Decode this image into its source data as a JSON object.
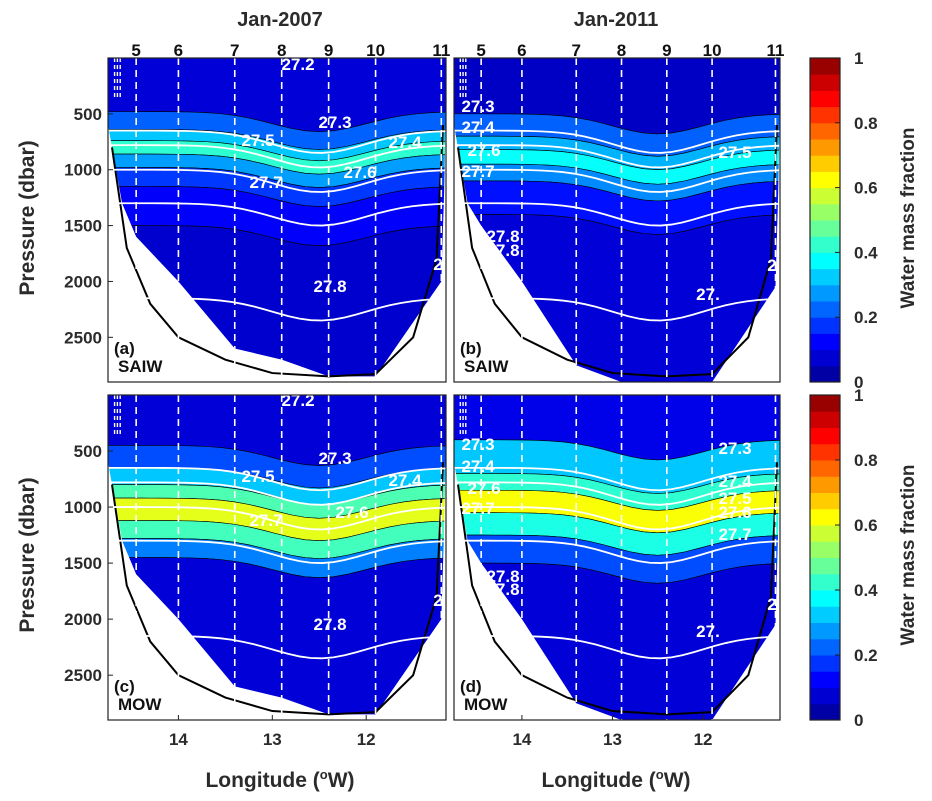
{
  "figure": {
    "column_titles": [
      "Jan-2007",
      "Jan-2011"
    ],
    "xlabel": "Longitude (°W)",
    "ylabel": "Pressure (dbar)",
    "colorbar_label": "Water mass fraction"
  },
  "chart_data": [
    {
      "type": "heatmap",
      "panel": "(a)",
      "water_mass": "SAIW",
      "section": "Jan-2007",
      "xlabel": "Longitude (°W)",
      "ylabel": "Pressure (dbar)",
      "xlim": [
        14.75,
        11.15
      ],
      "ylim": [
        2900,
        0
      ],
      "x_ticks": [
        14,
        13,
        12
      ],
      "y_ticks": [
        500,
        1000,
        1500,
        2000,
        2500
      ],
      "stations": [
        {
          "label": "5",
          "lon": 14.45
        },
        {
          "label": "6",
          "lon": 14.0
        },
        {
          "label": "7",
          "lon": 13.4
        },
        {
          "label": "8",
          "lon": 12.9
        },
        {
          "label": "9",
          "lon": 12.4
        },
        {
          "label": "10",
          "lon": 11.9
        },
        {
          "label": "11",
          "lon": 11.2
        }
      ],
      "isopycnal_labels": [
        "27.2",
        "27.3",
        "27.5",
        "27.4",
        "27.7",
        "27.6",
        "27.8",
        "2"
      ],
      "layers": [
        {
          "p_top": 0,
          "p_bot": 480,
          "fraction": 0.08
        },
        {
          "p_top": 480,
          "p_bot": 640,
          "fraction": 0.22
        },
        {
          "p_top": 640,
          "p_bot": 740,
          "fraction": 0.32
        },
        {
          "p_top": 740,
          "p_bot": 860,
          "fraction": 0.42
        },
        {
          "p_top": 860,
          "p_bot": 980,
          "fraction": 0.28
        },
        {
          "p_top": 980,
          "p_bot": 1150,
          "fraction": 0.18
        },
        {
          "p_top": 1150,
          "p_bot": 1500,
          "fraction": 0.12
        },
        {
          "p_top": 1500,
          "p_bot": 2900,
          "fraction": 0.07
        }
      ],
      "colorbar": {
        "min": 0,
        "max": 1,
        "ticks": [
          0,
          0.2,
          0.4,
          0.6,
          0.8,
          1
        ]
      }
    },
    {
      "type": "heatmap",
      "panel": "(b)",
      "water_mass": "SAIW",
      "section": "Jan-2011",
      "xlabel": "Longitude (°W)",
      "ylabel": "Pressure (dbar)",
      "xlim": [
        14.75,
        11.15
      ],
      "ylim": [
        2900,
        0
      ],
      "x_ticks": [
        14,
        13,
        12
      ],
      "y_ticks": [
        500,
        1000,
        1500,
        2000,
        2500
      ],
      "stations": [
        {
          "label": "5",
          "lon": 14.45
        },
        {
          "label": "6",
          "lon": 14.0
        },
        {
          "label": "7",
          "lon": 13.4
        },
        {
          "label": "8",
          "lon": 12.9
        },
        {
          "label": "9",
          "lon": 12.4
        },
        {
          "label": "10",
          "lon": 11.9
        },
        {
          "label": "11",
          "lon": 11.2
        }
      ],
      "isopycnal_labels": [
        "27.3",
        "27.4",
        "27.6",
        "27.7",
        "27.5",
        "27.8",
        "27.8",
        "27.",
        "2"
      ],
      "layers": [
        {
          "p_top": 0,
          "p_bot": 500,
          "fraction": 0.06
        },
        {
          "p_top": 500,
          "p_bot": 700,
          "fraction": 0.22
        },
        {
          "p_top": 700,
          "p_bot": 820,
          "fraction": 0.3
        },
        {
          "p_top": 820,
          "p_bot": 950,
          "fraction": 0.38
        },
        {
          "p_top": 950,
          "p_bot": 1100,
          "fraction": 0.26
        },
        {
          "p_top": 1100,
          "p_bot": 1400,
          "fraction": 0.14
        },
        {
          "p_top": 1400,
          "p_bot": 2900,
          "fraction": 0.08
        }
      ],
      "colorbar": {
        "min": 0,
        "max": 1,
        "ticks": [
          0,
          0.2,
          0.4,
          0.6,
          0.8,
          1
        ]
      }
    },
    {
      "type": "heatmap",
      "panel": "(c)",
      "water_mass": "MOW",
      "section": "Jan-2007",
      "xlabel": "Longitude (°W)",
      "ylabel": "Pressure (dbar)",
      "xlim": [
        14.75,
        11.15
      ],
      "ylim": [
        2900,
        0
      ],
      "x_ticks": [
        14,
        13,
        12
      ],
      "y_ticks": [
        500,
        1000,
        1500,
        2000,
        2500
      ],
      "stations": [
        {
          "label": "",
          "lon": 14.45
        },
        {
          "label": "",
          "lon": 14.0
        },
        {
          "label": "",
          "lon": 13.4
        },
        {
          "label": "",
          "lon": 12.9
        },
        {
          "label": "",
          "lon": 12.4
        },
        {
          "label": "",
          "lon": 11.9
        },
        {
          "label": "",
          "lon": 11.2
        }
      ],
      "isopycnal_labels": [
        "27.2",
        "27.3",
        "27.5",
        "27.4",
        "27.7",
        "27.6",
        "27.8",
        "2"
      ],
      "layers": [
        {
          "p_top": 0,
          "p_bot": 450,
          "fraction": 0.08
        },
        {
          "p_top": 450,
          "p_bot": 650,
          "fraction": 0.2
        },
        {
          "p_top": 650,
          "p_bot": 800,
          "fraction": 0.32
        },
        {
          "p_top": 800,
          "p_bot": 920,
          "fraction": 0.45
        },
        {
          "p_top": 920,
          "p_bot": 1120,
          "fraction": 0.6
        },
        {
          "p_top": 1120,
          "p_bot": 1280,
          "fraction": 0.44
        },
        {
          "p_top": 1280,
          "p_bot": 1450,
          "fraction": 0.25
        },
        {
          "p_top": 1450,
          "p_bot": 2900,
          "fraction": 0.08
        }
      ],
      "colorbar": {
        "min": 0,
        "max": 1,
        "ticks": [
          0,
          0.2,
          0.4,
          0.6,
          0.8,
          1
        ]
      }
    },
    {
      "type": "heatmap",
      "panel": "(d)",
      "water_mass": "MOW",
      "section": "Jan-2011",
      "xlabel": "Longitude (°W)",
      "ylabel": "Pressure (dbar)",
      "xlim": [
        14.75,
        11.15
      ],
      "ylim": [
        2900,
        0
      ],
      "x_ticks": [
        14,
        13,
        12
      ],
      "y_ticks": [
        500,
        1000,
        1500,
        2000,
        2500
      ],
      "stations": [
        {
          "label": "",
          "lon": 14.45
        },
        {
          "label": "",
          "lon": 14.0
        },
        {
          "label": "",
          "lon": 13.4
        },
        {
          "label": "",
          "lon": 12.9
        },
        {
          "label": "",
          "lon": 12.4
        },
        {
          "label": "",
          "lon": 11.9
        },
        {
          "label": "",
          "lon": 11.2
        }
      ],
      "isopycnal_labels": [
        "27.3",
        "27.4",
        "27.6",
        "27.7",
        "27.3",
        "27.4",
        "27.5",
        "27.6",
        "27.7",
        "27.8",
        "27.8",
        "27.",
        "2"
      ],
      "layers": [
        {
          "p_top": 0,
          "p_bot": 400,
          "fraction": 0.1
        },
        {
          "p_top": 400,
          "p_bot": 700,
          "fraction": 0.32
        },
        {
          "p_top": 700,
          "p_bot": 850,
          "fraction": 0.42
        },
        {
          "p_top": 850,
          "p_bot": 1050,
          "fraction": 0.62
        },
        {
          "p_top": 1050,
          "p_bot": 1250,
          "fraction": 0.4
        },
        {
          "p_top": 1250,
          "p_bot": 1500,
          "fraction": 0.2
        },
        {
          "p_top": 1500,
          "p_bot": 2900,
          "fraction": 0.08
        }
      ],
      "colorbar": {
        "min": 0,
        "max": 1,
        "ticks": [
          0,
          0.2,
          0.4,
          0.6,
          0.8,
          1
        ]
      }
    }
  ]
}
